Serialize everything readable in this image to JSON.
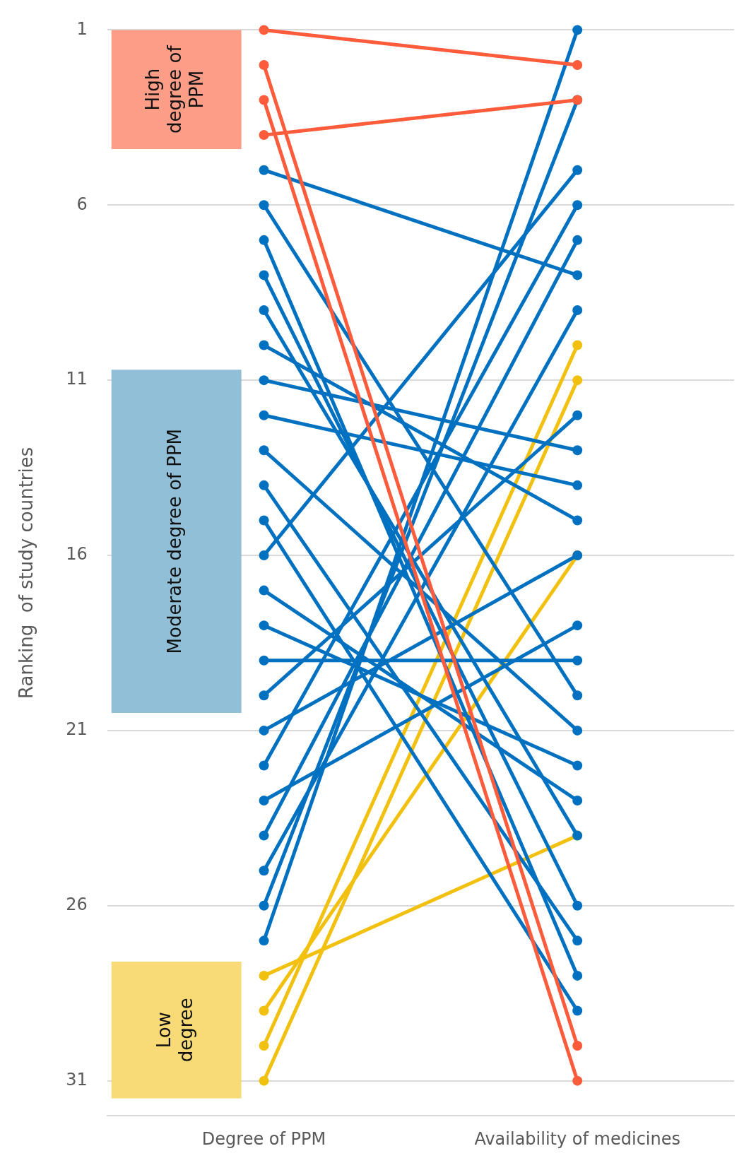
{
  "chart_data": {
    "type": "line",
    "ylabel": "Ranking  of study countries",
    "categories": [
      "Degree of PPM",
      "Availability of medicines"
    ],
    "ylim": [
      32,
      1
    ],
    "yticks": [
      1,
      6,
      11,
      16,
      21,
      26,
      31
    ],
    "grid": "y",
    "legend": false,
    "marker": "circle",
    "line_style": "solid",
    "bands": [
      {
        "axis": "y",
        "from": 1,
        "to": 4.4,
        "label": "High degree of PPM",
        "color": "#fc9d87"
      },
      {
        "axis": "y",
        "from": 10.7,
        "to": 20.5,
        "label": "Moderate degree of PPM",
        "color": "#92bfd8"
      },
      {
        "axis": "y",
        "from": 27.6,
        "to": 31.5,
        "label": "Low degree",
        "color": "#f8db77"
      }
    ],
    "series": [
      {
        "color": "#fd5c3c",
        "values": [
          1,
          2
        ]
      },
      {
        "color": "#fd5c3c",
        "values": [
          2,
          30
        ]
      },
      {
        "color": "#fd5c3c",
        "values": [
          3,
          31
        ]
      },
      {
        "color": "#fd5c3c",
        "values": [
          4,
          3
        ]
      },
      {
        "color": "#0070c0",
        "values": [
          5,
          8
        ]
      },
      {
        "color": "#0070c0",
        "values": [
          6,
          20
        ]
      },
      {
        "color": "#0070c0",
        "values": [
          7,
          28
        ]
      },
      {
        "color": "#0070c0",
        "values": [
          8,
          26
        ]
      },
      {
        "color": "#0070c0",
        "values": [
          9,
          24
        ]
      },
      {
        "color": "#0070c0",
        "values": [
          10,
          15
        ]
      },
      {
        "color": "#0070c0",
        "values": [
          11,
          13
        ]
      },
      {
        "color": "#0070c0",
        "values": [
          12,
          14
        ]
      },
      {
        "color": "#0070c0",
        "values": [
          13,
          21
        ]
      },
      {
        "color": "#0070c0",
        "values": [
          14,
          27
        ]
      },
      {
        "color": "#0070c0",
        "values": [
          15,
          29
        ]
      },
      {
        "color": "#0070c0",
        "values": [
          16,
          5
        ]
      },
      {
        "color": "#0070c0",
        "values": [
          17,
          23
        ]
      },
      {
        "color": "#0070c0",
        "values": [
          18,
          22
        ]
      },
      {
        "color": "#0070c0",
        "values": [
          19,
          19
        ]
      },
      {
        "color": "#0070c0",
        "values": [
          20,
          12
        ]
      },
      {
        "color": "#0070c0",
        "values": [
          21,
          16
        ]
      },
      {
        "color": "#0070c0",
        "values": [
          22,
          6
        ]
      },
      {
        "color": "#0070c0",
        "values": [
          23,
          18
        ]
      },
      {
        "color": "#0070c0",
        "values": [
          24,
          7
        ]
      },
      {
        "color": "#0070c0",
        "values": [
          25,
          9
        ]
      },
      {
        "color": "#0070c0",
        "values": [
          26,
          3
        ]
      },
      {
        "color": "#0070c0",
        "values": [
          27,
          1
        ]
      },
      {
        "color": "#f2c00f",
        "values": [
          28,
          24
        ]
      },
      {
        "color": "#f2c00f",
        "values": [
          29,
          16
        ]
      },
      {
        "color": "#f2c00f",
        "values": [
          30,
          10
        ]
      },
      {
        "color": "#f2c00f",
        "values": [
          31,
          11
        ]
      }
    ]
  }
}
